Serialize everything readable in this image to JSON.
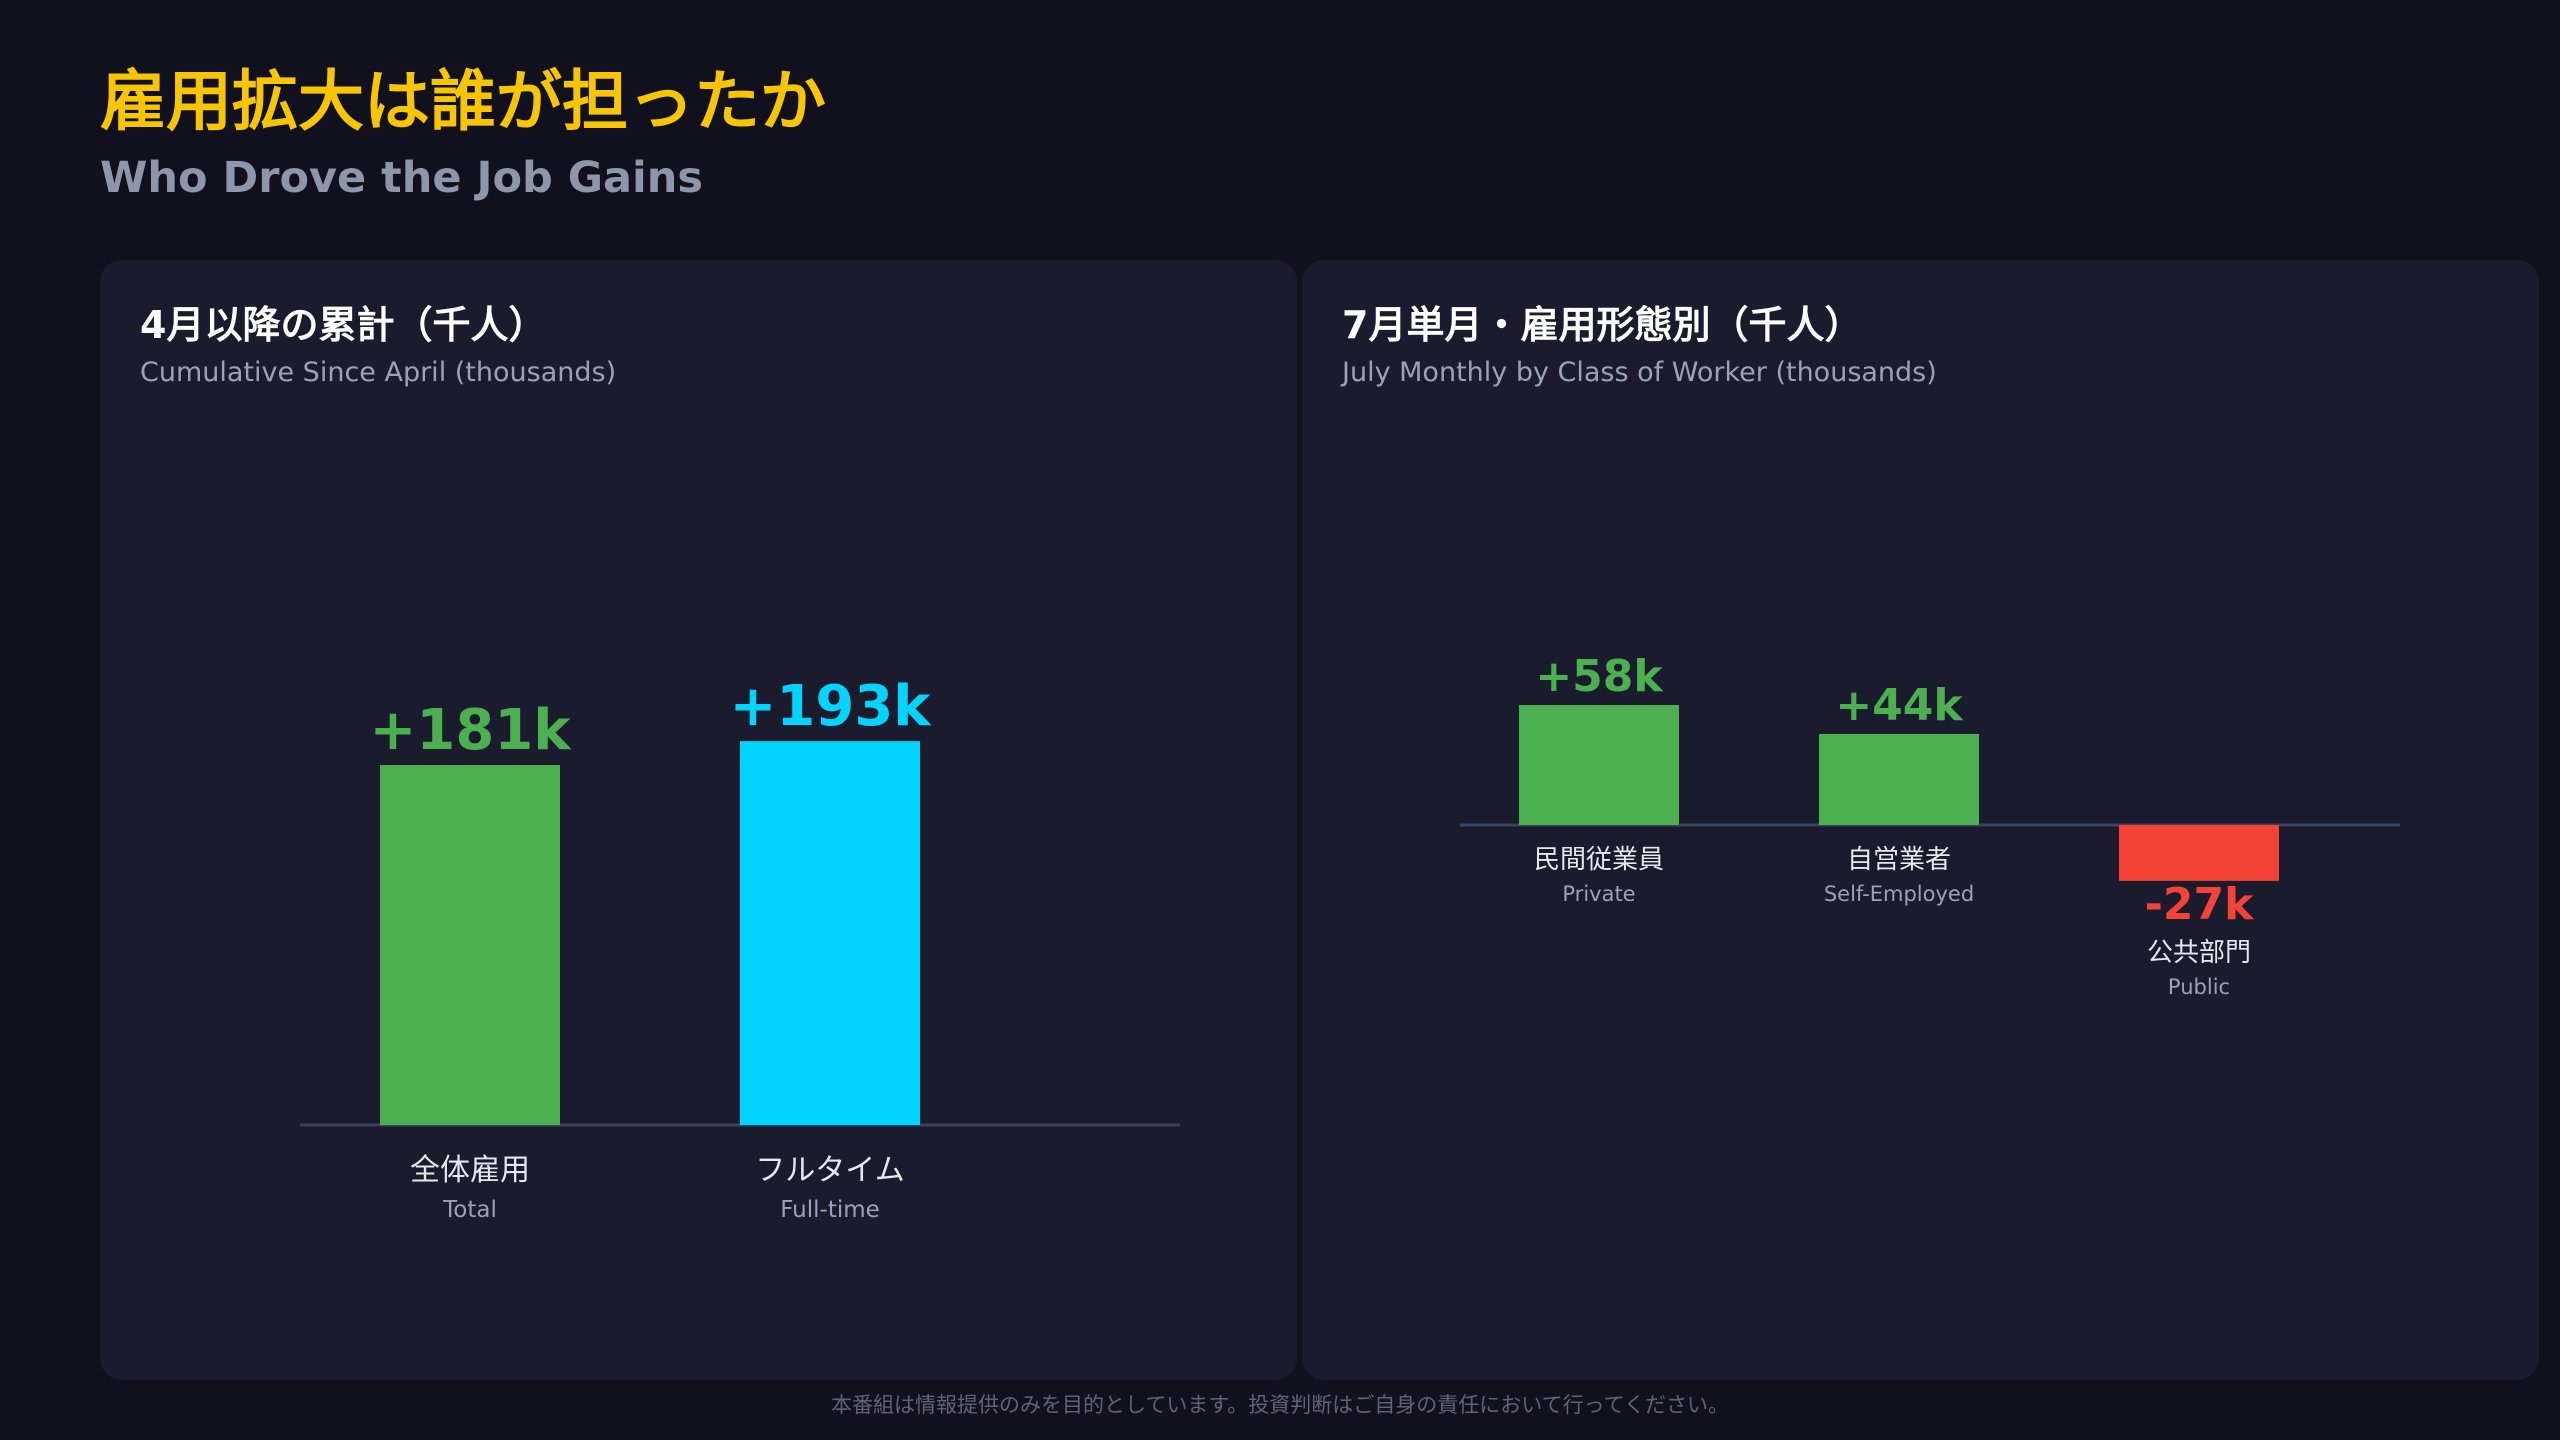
{
  "header": {
    "title_jp": "雇用拡大は誰が担ったか",
    "title_en": "Who Drove the Job Gains"
  },
  "colors": {
    "background": "#10111c",
    "panel": "#1a1b2c",
    "title_accent": "#f7c600",
    "positive": "#4caf50",
    "fulltime": "#00d4ff",
    "negative": "#f44336",
    "baseline": "#3d4160"
  },
  "panels": [
    {
      "title": "4月以降の累計（千人）",
      "subtitle": "Cumulative Since April (thousands)"
    },
    {
      "title": "7月単月・雇用形態別（千人）",
      "subtitle": "July Monthly by Class of Worker (thousands)"
    }
  ],
  "chart_data": [
    {
      "type": "bar",
      "title": "4月以降の累計（千人）",
      "subtitle": "Cumulative Since April (thousands)",
      "categories": [
        "全体雇用",
        "フルタイム"
      ],
      "categories_en": [
        "Total",
        "Full-time"
      ],
      "values": [
        181,
        193
      ],
      "value_labels": [
        "+181k",
        "+193k"
      ],
      "colors": [
        "#4caf50",
        "#00d4ff"
      ],
      "grid": false,
      "legend": "none"
    },
    {
      "type": "bar",
      "title": "7月単月・雇用形態別（千人）",
      "subtitle": "July Monthly by Class of Worker (thousands)",
      "categories": [
        "民間従業員",
        "自営業者",
        "公共部門"
      ],
      "categories_en": [
        "Private",
        "Self-Employed",
        "Public"
      ],
      "values": [
        58,
        44,
        -27
      ],
      "value_labels": [
        "+58k",
        "+44k",
        "-27k"
      ],
      "colors": [
        "#4caf50",
        "#4caf50",
        "#f44336"
      ],
      "grid": false,
      "legend": "none"
    }
  ],
  "footer": {
    "disclaimer": "本番組は情報提供のみを目的としています。投資判断はご自身の責任において行ってください。"
  }
}
